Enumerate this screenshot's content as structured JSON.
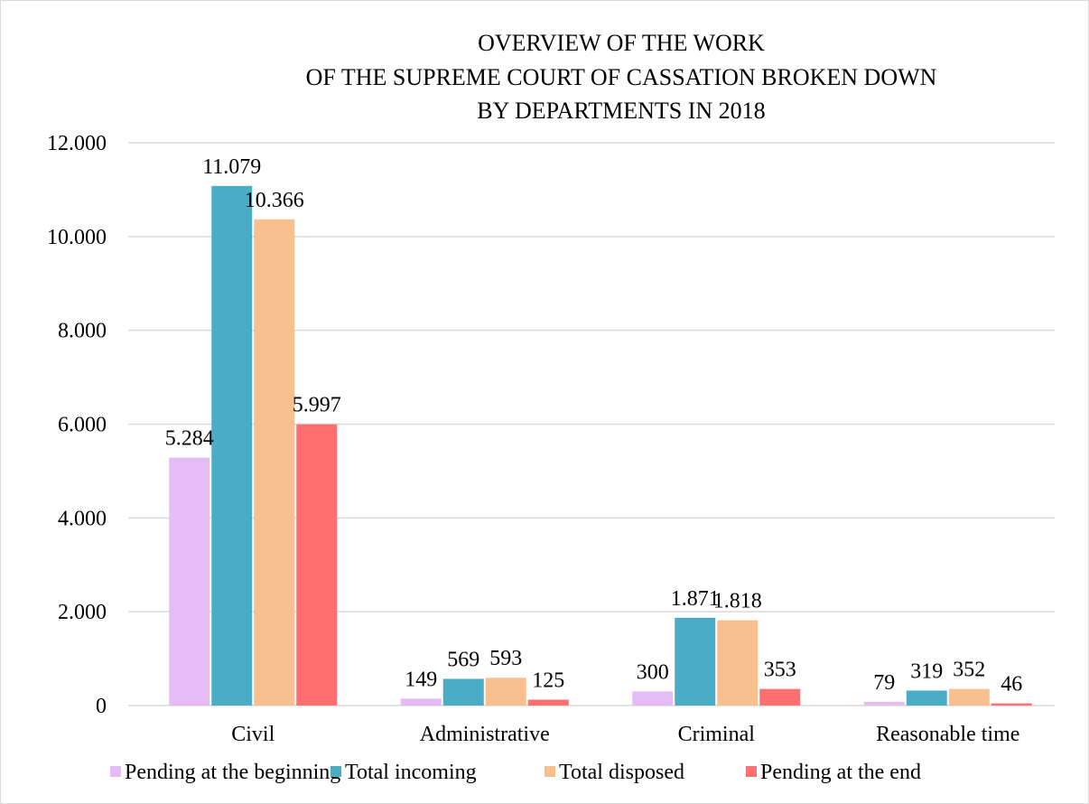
{
  "chart_data": {
    "type": "bar",
    "title_lines": [
      "OVERVIEW OF THE WORK",
      "OF THE SUPREME COURT OF CASSATION BROKEN DOWN",
      "BY DEPARTMENTS IN 2018"
    ],
    "categories": [
      "Civil",
      "Administrative",
      "Criminal",
      "Reasonable time"
    ],
    "series": [
      {
        "name": "Pending at the beginning",
        "color": "#e6bcf7",
        "values": [
          5284,
          149,
          300,
          79
        ],
        "labels": [
          "5.284",
          "149",
          "300",
          "79"
        ]
      },
      {
        "name": "Total incoming",
        "color": "#4bacc6",
        "values": [
          11079,
          569,
          1871,
          319
        ],
        "labels": [
          "11.079",
          "569",
          "1.871",
          "319"
        ]
      },
      {
        "name": "Total disposed",
        "color": "#f8c08f",
        "values": [
          10366,
          593,
          1818,
          352
        ],
        "labels": [
          "10.366",
          "593",
          "1.818",
          "352"
        ]
      },
      {
        "name": "Pending at the end",
        "color": "#ff6f6f",
        "values": [
          5997,
          125,
          353,
          46
        ],
        "labels": [
          "5.997",
          "125",
          "353",
          "46"
        ]
      }
    ],
    "yticks": [
      0,
      2000,
      4000,
      6000,
      8000,
      10000,
      12000
    ],
    "ytick_labels": [
      "0",
      "2.000",
      "4.000",
      "6.000",
      "8.000",
      "10.000",
      "12.000"
    ],
    "ylim": [
      0,
      12000
    ],
    "xlabel": "",
    "ylabel": "",
    "grid": true,
    "legend_position": "bottom",
    "gridline_color": "#d9d9d9"
  }
}
